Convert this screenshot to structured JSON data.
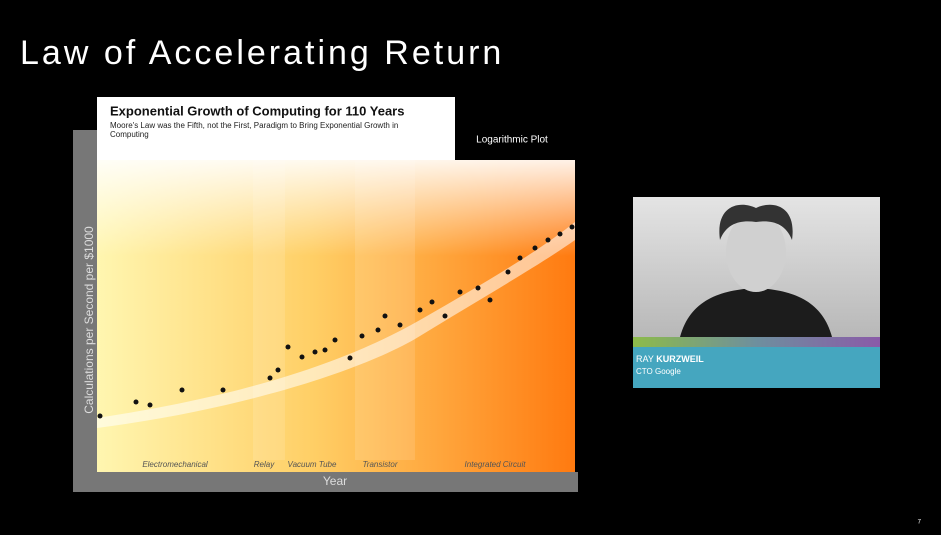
{
  "slide": {
    "title": "Law of Accelerating Return",
    "page_number": "7"
  },
  "figure": {
    "title": "Exponential Growth of Computing for 110 Years",
    "subtitle": "Moore's Law was the Fifth, not the First, Paradigm to Bring Exponential Growth in Computing",
    "plot_note": "Logarithmic Plot",
    "y_label": "Calculations per Second per $1000",
    "x_label": "Year",
    "eras": [
      "Electromechanical",
      "Relay",
      "Vacuum Tube",
      "Transistor",
      "Integrated Circuit"
    ]
  },
  "person": {
    "first_name": "RAY",
    "last_name": "KURZWEIL",
    "role": "CTO Google"
  }
}
